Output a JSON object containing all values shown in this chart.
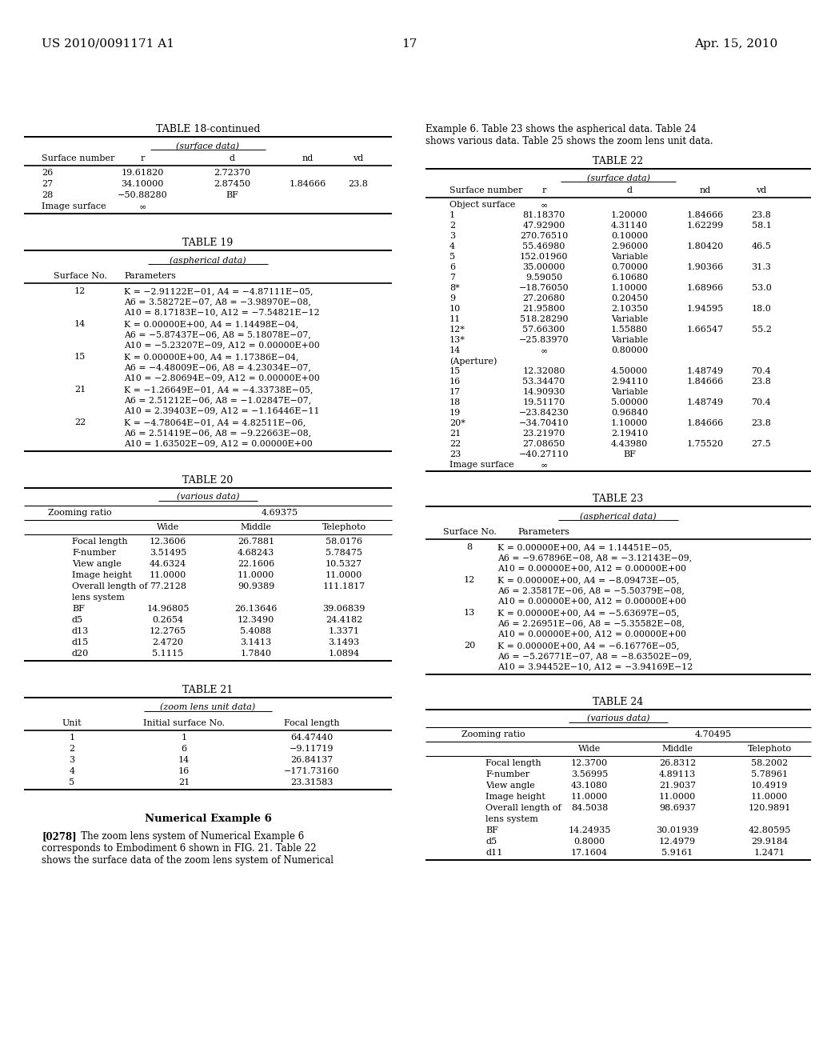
{
  "page_header_left": "US 2010/0091171 A1",
  "page_header_right": "Apr. 15, 2010",
  "page_number": "17",
  "table18_title": "TABLE 18-continued",
  "table18_subtitle": "(surface data)",
  "table18_headers": [
    "Surface number",
    "r",
    "d",
    "nd",
    "vd"
  ],
  "table18_rows": [
    [
      "26",
      "19.61820",
      "2.72370",
      "",
      ""
    ],
    [
      "27",
      "34.10000",
      "2.87450",
      "1.84666",
      "23.8"
    ],
    [
      "28",
      "−50.88280",
      "BF",
      "",
      ""
    ],
    [
      "Image surface",
      "∞",
      "",
      "",
      ""
    ]
  ],
  "table19_title": "TABLE 19",
  "table19_subtitle": "(aspherical data)",
  "table19_rows": [
    [
      "12",
      "K = −2.91122E−01, A4 = −4.87111E−05,\nA6 = 3.58272E−07, A8 = −3.98970E−08,\nA10 = 8.17183E−10, A12 = −7.54821E−12"
    ],
    [
      "14",
      "K = 0.00000E+00, A4 = 1.14498E−04,\nA6 = −5.87437E−06, A8 = 5.18078E−07,\nA10 = −5.23207E−09, A12 = 0.00000E+00"
    ],
    [
      "15",
      "K = 0.00000E+00, A4 = 1.17386E−04,\nA6 = −4.48009E−06, A8 = 4.23034E−07,\nA10 = −2.80694E−09, A12 = 0.00000E+00"
    ],
    [
      "21",
      "K = −1.26649E−01, A4 = −4.33738E−05,\nA6 = 2.51212E−06, A8 = −1.02847E−07,\nA10 = 2.39403E−09, A12 = −1.16446E−11"
    ],
    [
      "22",
      "K = −4.78064E−01, A4 = 4.82511E−06,\nA6 = 2.51419E−06, A8 = −9.22663E−08,\nA10 = 1.63502E−09, A12 = 0.00000E+00"
    ]
  ],
  "table20_title": "TABLE 20",
  "table20_subtitle": "(various data)",
  "table20_zooming_val": "4.69375",
  "table20_rows": [
    [
      "Focal length",
      "12.3606",
      "26.7881",
      "58.0176"
    ],
    [
      "F-number",
      "3.51495",
      "4.68243",
      "5.78475"
    ],
    [
      "View angle",
      "44.6324",
      "22.1606",
      "10.5327"
    ],
    [
      "Image height",
      "11.0000",
      "11.0000",
      "11.0000"
    ],
    [
      "Overall length of",
      "77.2128",
      "90.9389",
      "111.1817"
    ],
    [
      "lens system",
      "",
      "",
      ""
    ],
    [
      "BF",
      "14.96805",
      "26.13646",
      "39.06839"
    ],
    [
      "d5",
      "0.2654",
      "12.3490",
      "24.4182"
    ],
    [
      "d13",
      "12.2765",
      "5.4088",
      "1.3371"
    ],
    [
      "d15",
      "2.4720",
      "3.1413",
      "3.1493"
    ],
    [
      "d20",
      "5.1115",
      "1.7840",
      "1.0894"
    ]
  ],
  "table21_title": "TABLE 21",
  "table21_subtitle": "(zoom lens unit data)",
  "table21_rows": [
    [
      "1",
      "1",
      "64.47440"
    ],
    [
      "2",
      "6",
      "−9.11719"
    ],
    [
      "3",
      "14",
      "26.84137"
    ],
    [
      "4",
      "16",
      "−171.73160"
    ],
    [
      "5",
      "21",
      "23.31583"
    ]
  ],
  "num_example_title": "Numerical Example 6",
  "paragraph_0278_bold": "[0278]",
  "paragraph_0278_rest": "   The zoom lens system of Numerical Example 6\ncorresponds to Embodiment 6 shown in FIG. 21. Table 22\nshows the surface data of the zoom lens system of Numerical",
  "intro_right": "Example 6. Table 23 shows the aspherical data. Table 24\nshows various data. Table 25 shows the zoom lens unit data.",
  "table22_title": "TABLE 22",
  "table22_subtitle": "(surface data)",
  "table22_rows": [
    [
      "Object surface",
      "∞",
      "",
      "",
      ""
    ],
    [
      "1",
      "81.18370",
      "1.20000",
      "1.84666",
      "23.8"
    ],
    [
      "2",
      "47.92900",
      "4.31140",
      "1.62299",
      "58.1"
    ],
    [
      "3",
      "270.76510",
      "0.10000",
      "",
      ""
    ],
    [
      "4",
      "55.46980",
      "2.96000",
      "1.80420",
      "46.5"
    ],
    [
      "5",
      "152.01960",
      "Variable",
      "",
      ""
    ],
    [
      "6",
      "35.00000",
      "0.70000",
      "1.90366",
      "31.3"
    ],
    [
      "7",
      "9.59050",
      "6.10680",
      "",
      ""
    ],
    [
      "8*",
      "−18.76050",
      "1.10000",
      "1.68966",
      "53.0"
    ],
    [
      "9",
      "27.20680",
      "0.20450",
      "",
      ""
    ],
    [
      "10",
      "21.95800",
      "2.10350",
      "1.94595",
      "18.0"
    ],
    [
      "11",
      "518.28290",
      "Variable",
      "",
      ""
    ],
    [
      "12*",
      "57.66300",
      "1.55880",
      "1.66547",
      "55.2"
    ],
    [
      "13*",
      "−25.83970",
      "Variable",
      "",
      ""
    ],
    [
      "14",
      "∞",
      "0.80000",
      "",
      ""
    ],
    [
      "(Aperture)",
      "",
      "",
      "",
      ""
    ],
    [
      "15",
      "12.32080",
      "4.50000",
      "1.48749",
      "70.4"
    ],
    [
      "16",
      "53.34470",
      "2.94110",
      "1.84666",
      "23.8"
    ],
    [
      "17",
      "14.90930",
      "Variable",
      "",
      ""
    ],
    [
      "18",
      "19.51170",
      "5.00000",
      "1.48749",
      "70.4"
    ],
    [
      "19",
      "−23.84230",
      "0.96840",
      "",
      ""
    ],
    [
      "20*",
      "−34.70410",
      "1.10000",
      "1.84666",
      "23.8"
    ],
    [
      "21",
      "23.21970",
      "2.19410",
      "",
      ""
    ],
    [
      "22",
      "27.08650",
      "4.43980",
      "1.75520",
      "27.5"
    ],
    [
      "23",
      "−40.27110",
      "BF",
      "",
      ""
    ],
    [
      "Image surface",
      "∞",
      "",
      "",
      ""
    ]
  ],
  "table23_title": "TABLE 23",
  "table23_subtitle": "(aspherical data)",
  "table23_rows": [
    [
      "8",
      "K = 0.00000E+00, A4 = 1.14451E−05,\nA6 = −9.67896E−08, A8 = −3.12143E−09,\nA10 = 0.00000E+00, A12 = 0.00000E+00"
    ],
    [
      "12",
      "K = 0.00000E+00, A4 = −8.09473E−05,\nA6 = 2.35817E−06, A8 = −5.50379E−08,\nA10 = 0.00000E+00, A12 = 0.00000E+00"
    ],
    [
      "13",
      "K = 0.00000E+00, A4 = −5.63697E−05,\nA6 = 2.26951E−06, A8 = −5.35582E−08,\nA10 = 0.00000E+00, A12 = 0.00000E+00"
    ],
    [
      "20",
      "K = 0.00000E+00, A4 = −6.16776E−05,\nA6 = −5.26771E−07, A8 = −8.63502E−09,\nA10 = 3.94452E−10, A12 = −3.94169E−12"
    ]
  ],
  "table24_title": "TABLE 24",
  "table24_subtitle": "(various data)",
  "table24_zooming_val": "4.70495",
  "table24_rows": [
    [
      "Focal length",
      "12.3700",
      "26.8312",
      "58.2002"
    ],
    [
      "F-number",
      "3.56995",
      "4.89113",
      "5.78961"
    ],
    [
      "View angle",
      "43.1080",
      "21.9037",
      "10.4919"
    ],
    [
      "Image height",
      "11.0000",
      "11.0000",
      "11.0000"
    ],
    [
      "Overall length of",
      "84.5038",
      "98.6937",
      "120.9891"
    ],
    [
      "lens system",
      "",
      "",
      ""
    ],
    [
      "BF",
      "14.24935",
      "30.01939",
      "42.80595"
    ],
    [
      "d5",
      "0.8000",
      "12.4979",
      "29.9184"
    ],
    [
      "d11",
      "17.1604",
      "5.9161",
      "1.2471"
    ]
  ]
}
